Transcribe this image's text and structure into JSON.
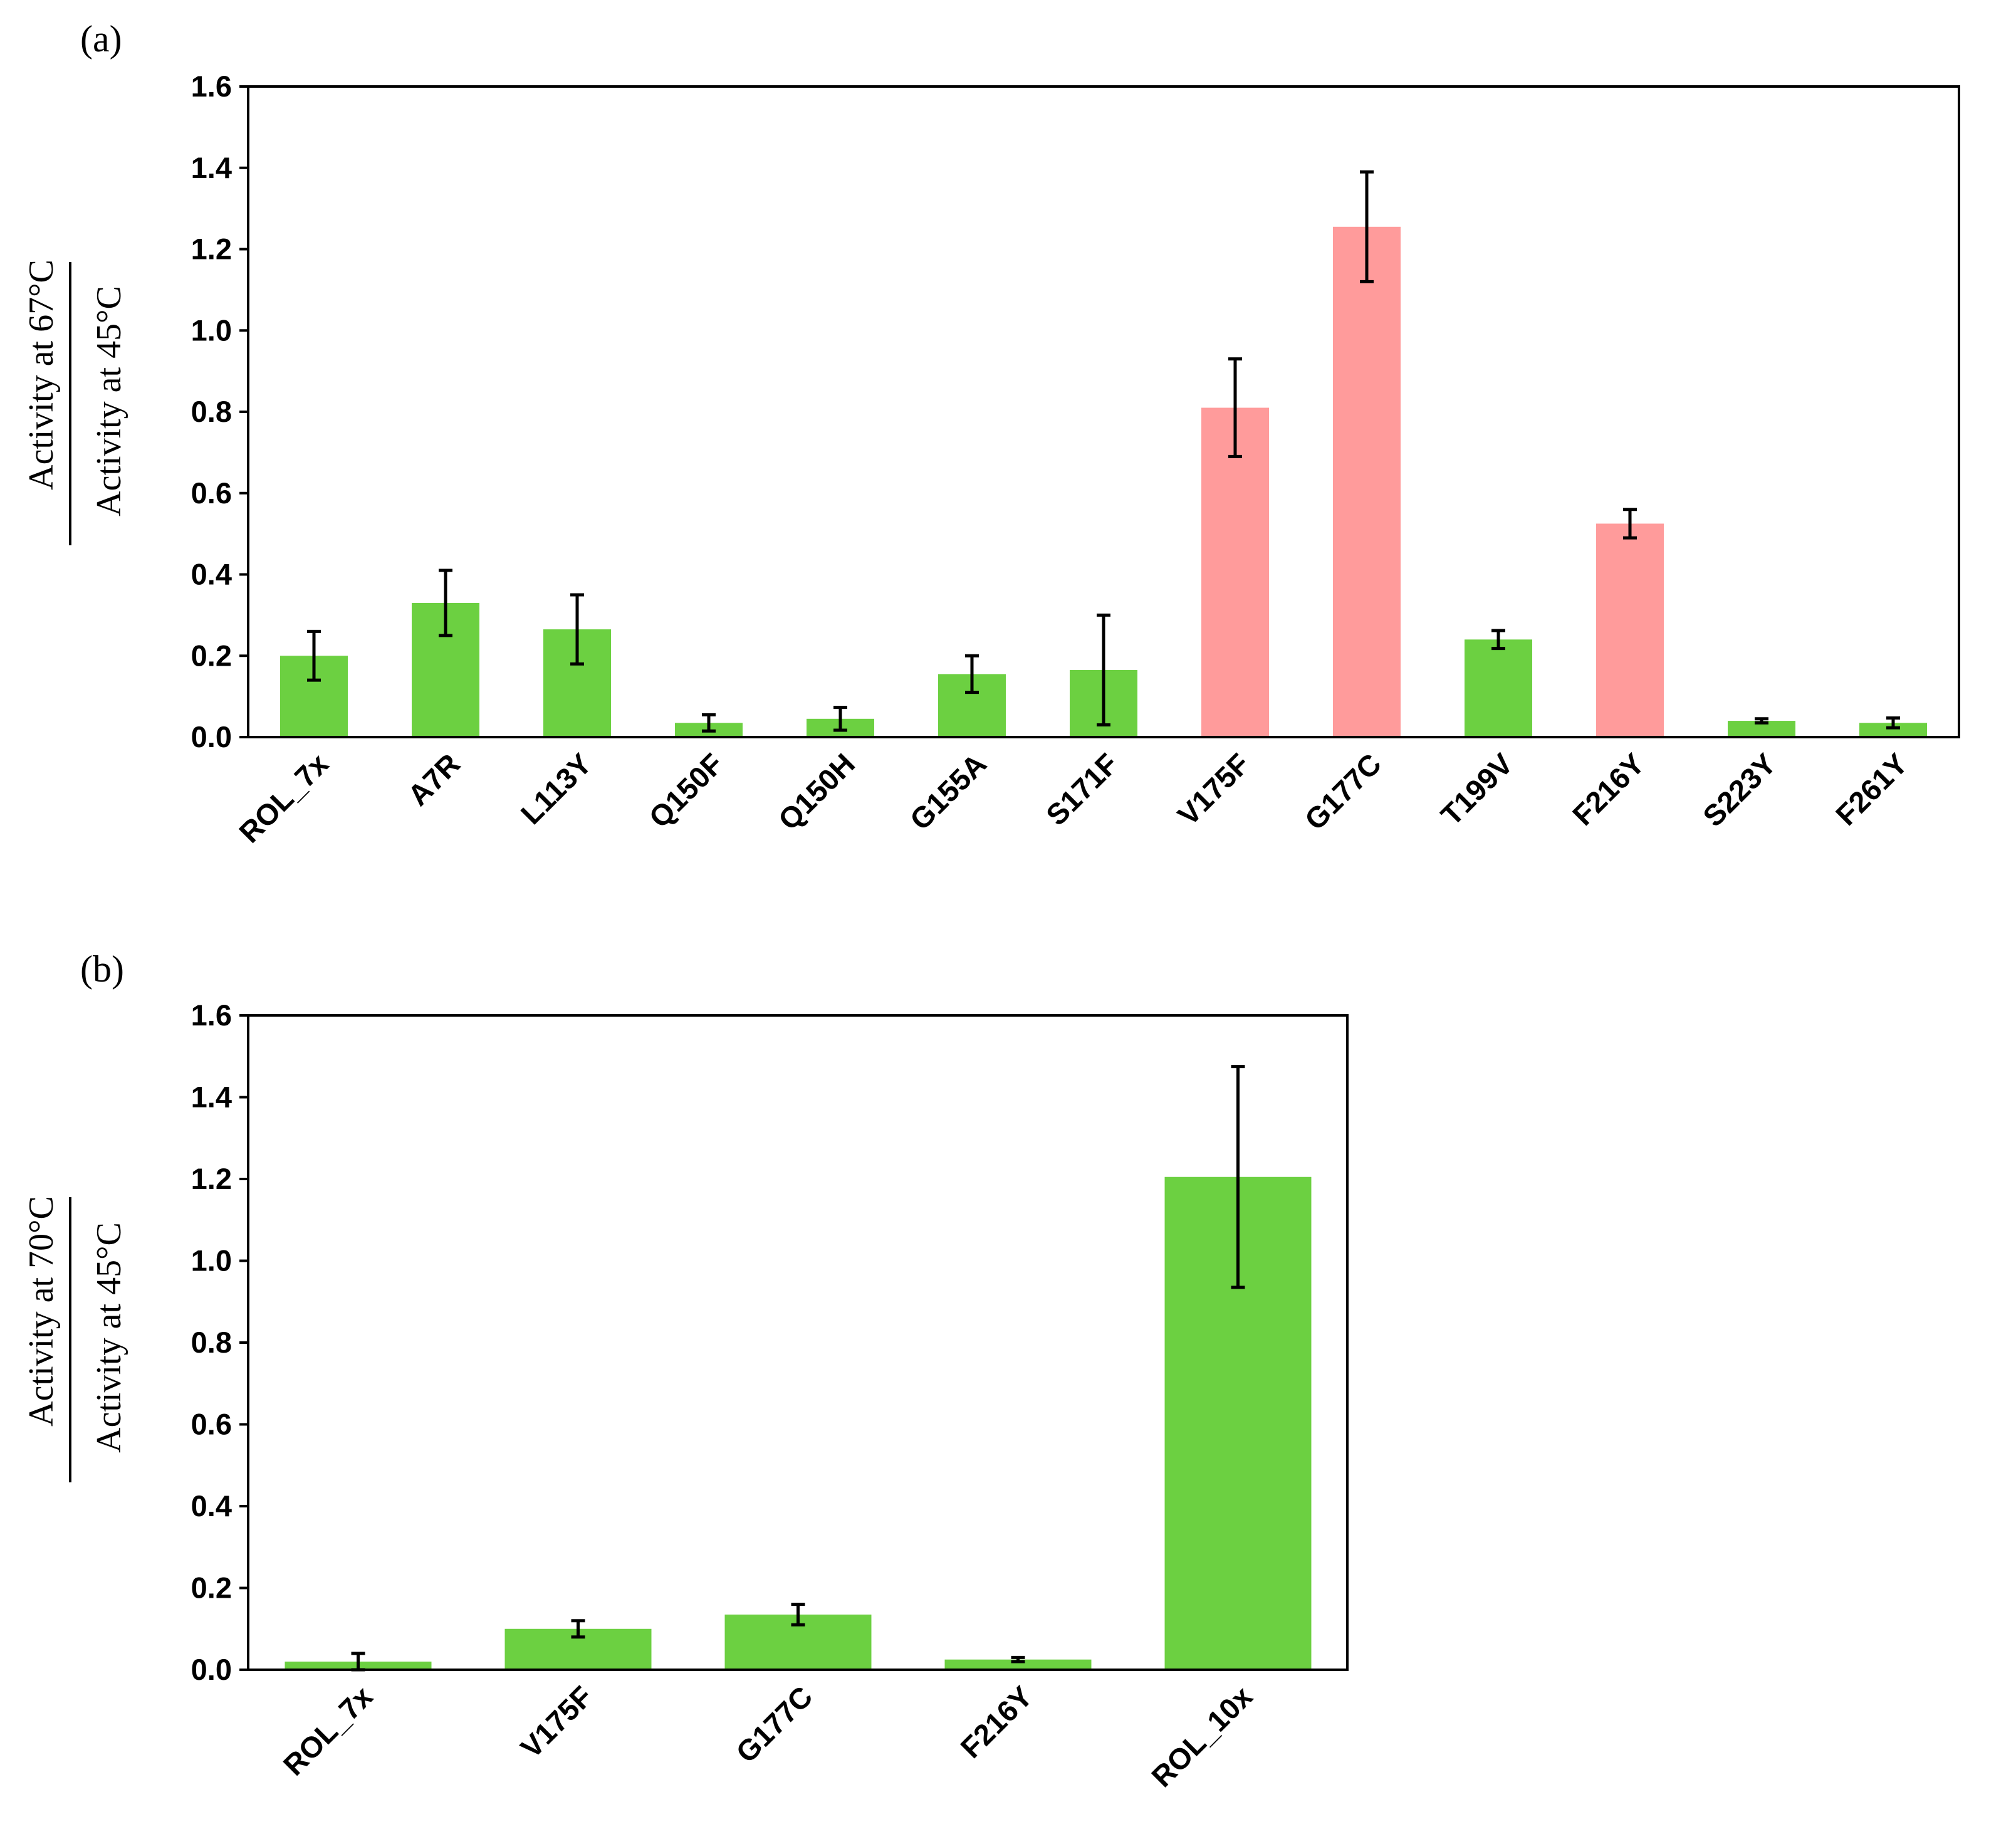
{
  "chart_data": [
    {
      "type": "bar",
      "panel_label": "(a)",
      "title": "",
      "xlabel": "",
      "ylabel_numerator": "Activity at 67°C",
      "ylabel_denominator": "Activity at 45°C",
      "ylim": [
        0,
        1.6
      ],
      "yticks": [
        "0.0",
        "0.2",
        "0.4",
        "0.6",
        "0.8",
        "1.0",
        "1.2",
        "1.4",
        "1.6"
      ],
      "categories": [
        "ROL_7x",
        "A7R",
        "L113Y",
        "Q150F",
        "Q150H",
        "G155A",
        "S171F",
        "V175F",
        "G177C",
        "T199V",
        "F216Y",
        "S223Y",
        "F261Y"
      ],
      "values": [
        0.2,
        0.33,
        0.265,
        0.035,
        0.045,
        0.155,
        0.165,
        0.81,
        1.255,
        0.24,
        0.525,
        0.04,
        0.035
      ],
      "errors": [
        0.06,
        0.08,
        0.085,
        0.02,
        0.028,
        0.045,
        0.135,
        0.12,
        0.135,
        0.022,
        0.035,
        0.005,
        0.012
      ],
      "highlight": [
        false,
        false,
        false,
        false,
        false,
        false,
        false,
        true,
        true,
        false,
        true,
        false,
        false
      ],
      "colors": {
        "default": "#6cd041",
        "highlight": "#ff9b9b"
      }
    },
    {
      "type": "bar",
      "panel_label": "(b)",
      "title": "",
      "xlabel": "",
      "ylabel_numerator": "Activity at 70°C",
      "ylabel_denominator": "Activity at 45°C",
      "ylim": [
        0,
        1.6
      ],
      "yticks": [
        "0.0",
        "0.2",
        "0.4",
        "0.6",
        "0.8",
        "1.0",
        "1.2",
        "1.4",
        "1.6"
      ],
      "categories": [
        "ROL_7x",
        "V175F",
        "G177C",
        "F216Y",
        "ROL_10x"
      ],
      "values": [
        0.02,
        0.1,
        0.135,
        0.025,
        1.205
      ],
      "errors": [
        0.02,
        0.02,
        0.025,
        0.005,
        0.27
      ],
      "highlight": [
        false,
        false,
        false,
        false,
        false
      ],
      "colors": {
        "default": "#6cd041",
        "highlight": "#ff9b9b"
      }
    }
  ]
}
